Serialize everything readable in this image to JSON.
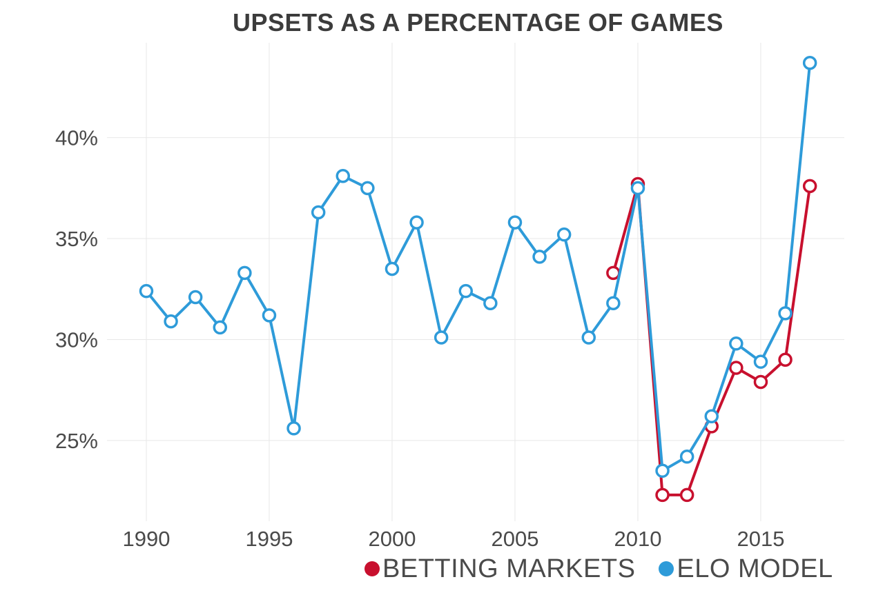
{
  "chart_data": {
    "type": "line",
    "title": "UPSETS AS A PERCENTAGE OF GAMES",
    "xlabel": "",
    "ylabel": "",
    "xlim": [
      1988.4,
      2018.4
    ],
    "ylim": [
      21.0,
      44.7
    ],
    "x_ticks": [
      1990,
      1995,
      2000,
      2005,
      2010,
      2015
    ],
    "x_tick_labels": [
      "1990",
      "1995",
      "2000",
      "2005",
      "2010",
      "2015"
    ],
    "y_ticks": [
      25,
      30,
      35,
      40
    ],
    "y_tick_labels": [
      "25%",
      "30%",
      "35%",
      "40%"
    ],
    "grid": true,
    "legend_position": "bottom-right",
    "series": [
      {
        "name": "BETTING MARKETS",
        "color": "#c8102e",
        "x": [
          2009,
          2010,
          2011,
          2012,
          2013,
          2014,
          2015,
          2016,
          2017
        ],
        "y": [
          33.3,
          37.7,
          22.3,
          22.3,
          25.7,
          28.6,
          27.9,
          29.0,
          37.6
        ]
      },
      {
        "name": "ELO MODEL",
        "color": "#2e9bd9",
        "x": [
          1990,
          1991,
          1992,
          1993,
          1994,
          1995,
          1996,
          1997,
          1998,
          1999,
          2000,
          2001,
          2002,
          2003,
          2004,
          2005,
          2006,
          2007,
          2008,
          2009,
          2010,
          2011,
          2012,
          2013,
          2014,
          2015,
          2016,
          2017
        ],
        "y": [
          32.4,
          30.9,
          32.1,
          30.6,
          33.3,
          31.2,
          25.6,
          36.3,
          38.1,
          37.5,
          33.5,
          35.8,
          30.1,
          32.4,
          31.8,
          35.8,
          34.1,
          35.2,
          30.1,
          31.8,
          37.5,
          23.5,
          24.2,
          26.2,
          29.8,
          28.9,
          31.3,
          43.7
        ]
      }
    ]
  }
}
